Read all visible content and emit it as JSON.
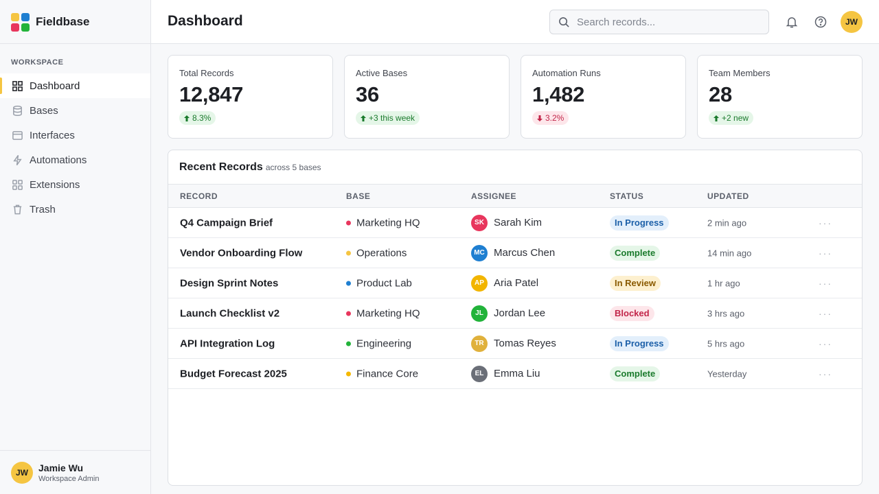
{
  "sidebar": {
    "brand": "Fieldbase",
    "section": "WORKSPACE",
    "active_nav": 0,
    "nav": [
      "Dashboard",
      "Bases",
      "Interfaces",
      "Automations",
      "Extensions",
      "Trash"
    ],
    "user": {
      "initials": "JW",
      "name": "Jamie Wu",
      "role": "Workspace Admin"
    }
  },
  "header": {
    "title": "Dashboard",
    "search_placeholder": "Search records...",
    "avatar": "JW"
  },
  "stats": [
    {
      "label": "Total Records",
      "value": "12,847",
      "delta": "8.3%",
      "trend": "up"
    },
    {
      "label": "Active Bases",
      "value": "36",
      "delta": "+3 this week",
      "trend": "up"
    },
    {
      "label": "Automation Runs",
      "value": "1,482",
      "delta": "3.2%",
      "trend": "down"
    },
    {
      "label": "Team Members",
      "value": "28",
      "delta": "+2 new",
      "trend": "up"
    }
  ],
  "table": {
    "title": "Recent Records",
    "subtitle": "across 5 bases",
    "columns": [
      "RECORD",
      "BASE",
      "ASSIGNEE",
      "STATUS",
      "UPDATED"
    ],
    "rows": [
      {
        "record": "Q4 Campaign Brief",
        "base": "Marketing HQ",
        "base_color": "#e8365d",
        "initials": "SK",
        "assignee": "Sarah Kim",
        "avatar_color": "#e8365d",
        "status": "In Progress",
        "status_tone": "blue",
        "updated": "2 min ago"
      },
      {
        "record": "Vendor Onboarding Flow",
        "base": "Operations",
        "base_color": "#f5c542",
        "initials": "MC",
        "assignee": "Marcus Chen",
        "avatar_color": "#1f7fd1",
        "status": "Complete",
        "status_tone": "green",
        "updated": "14 min ago"
      },
      {
        "record": "Design Sprint Notes",
        "base": "Product Lab",
        "base_color": "#1f7fd1",
        "initials": "AP",
        "assignee": "Aria Patel",
        "avatar_color": "#f2b500",
        "status": "In Review",
        "status_tone": "amber",
        "updated": "1 hr ago"
      },
      {
        "record": "Launch Checklist v2",
        "base": "Marketing HQ",
        "base_color": "#e8365d",
        "initials": "JL",
        "assignee": "Jordan Lee",
        "avatar_color": "#22b33a",
        "status": "Blocked",
        "status_tone": "red",
        "updated": "3 hrs ago"
      },
      {
        "record": "API Integration Log",
        "base": "Engineering",
        "base_color": "#22b33a",
        "initials": "TR",
        "assignee": "Tomas Reyes",
        "avatar_color": "#e0b13c",
        "status": "In Progress",
        "status_tone": "blue",
        "updated": "5 hrs ago"
      },
      {
        "record": "Budget Forecast 2025",
        "base": "Finance Core",
        "base_color": "#f5b800",
        "initials": "EL",
        "assignee": "Emma Liu",
        "avatar_color": "#6b6f78",
        "status": "Complete",
        "status_tone": "green",
        "updated": "Yesterday"
      }
    ]
  }
}
